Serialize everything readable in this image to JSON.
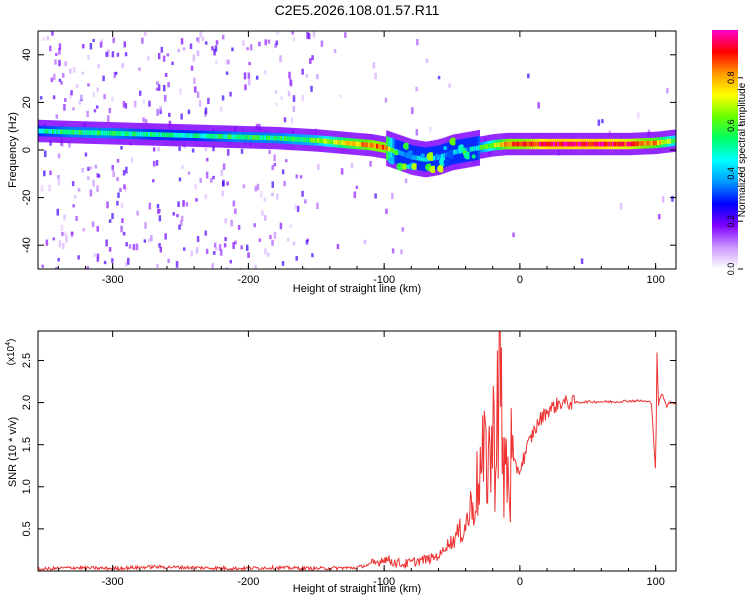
{
  "figure": {
    "title": "C2E5.2026.108.01.57.R11"
  },
  "colorbar": {
    "label": "Normalized spectral amplitude",
    "ticks": [
      "0.0",
      "0.2",
      "0.4",
      "0.6",
      "0.8"
    ],
    "colors": [
      "#ffffff",
      "#cc99ff",
      "#7f00ff",
      "#0000ff",
      "#0099ff",
      "#00ffff",
      "#00ff66",
      "#66ff00",
      "#ffff00",
      "#ff9900",
      "#ff0000",
      "#ff00cc"
    ]
  },
  "chart_data": [
    {
      "type": "heatmap",
      "xlabel": "Height of straight line (km)",
      "ylabel": "Frequency (Hz)",
      "xlim": [
        -355,
        115
      ],
      "ylim": [
        -50,
        50
      ],
      "x_ticks": [
        -300,
        -200,
        -100,
        0,
        100
      ],
      "x_tick_labels": [
        "-300",
        "-200",
        "-100",
        "0",
        "100"
      ],
      "y_ticks": [
        -40,
        -20,
        0,
        20,
        40
      ],
      "y_tick_labels": [
        "-40",
        "-20",
        "0",
        "20",
        "40"
      ],
      "ridge": {
        "x": [
          -355,
          -330,
          -300,
          -270,
          -240,
          -210,
          -180,
          -150,
          -130,
          -110,
          -100,
          -90,
          -80,
          -70,
          -60,
          -50,
          -40,
          -30,
          -20,
          -10,
          0,
          20,
          40,
          60,
          80,
          100,
          115
        ],
        "freq": [
          8,
          7.5,
          7,
          6.5,
          6,
          5.5,
          5,
          4,
          3,
          2,
          1,
          -1,
          -3,
          -4,
          -3,
          -1,
          0,
          1,
          2,
          2.5,
          2.5,
          2.5,
          2.5,
          2.5,
          2.5,
          3,
          4
        ],
        "amplitude": [
          0.5,
          0.55,
          0.55,
          0.5,
          0.5,
          0.55,
          0.55,
          0.6,
          0.75,
          0.85,
          0.85,
          0.4,
          0.4,
          0.45,
          0.4,
          0.4,
          0.35,
          0.55,
          0.7,
          0.85,
          0.85,
          0.95,
          0.95,
          0.95,
          0.9,
          0.8,
          0.6
        ]
      }
    },
    {
      "type": "line",
      "xlabel": "Height of straight line (km)",
      "ylabel": "SNR (10 * v/v)",
      "y_multiplier": "(x10",
      "y_multiplier_exp": "4",
      "y_multiplier_close": ")",
      "xlim": [
        -355,
        115
      ],
      "ylim": [
        0,
        2.85
      ],
      "x_ticks": [
        -300,
        -200,
        -100,
        0,
        100
      ],
      "x_tick_labels": [
        "-300",
        "-200",
        "-100",
        "0",
        "100"
      ],
      "y_ticks": [
        0.5,
        1.0,
        1.5,
        2.0,
        2.5
      ],
      "y_tick_labels": [
        "0.5",
        "1.0",
        "1.5",
        "2.0",
        "2.5"
      ],
      "series": [
        {
          "color": "#ee3333",
          "x": [
            -355,
            -330,
            -300,
            -270,
            -240,
            -210,
            -180,
            -150,
            -120,
            -105,
            -100,
            -92,
            -85,
            -75,
            -65,
            -58,
            -55,
            -50,
            -45,
            -40,
            -35,
            -30,
            -25,
            -20,
            -17,
            -15,
            -13,
            -10,
            -5,
            0,
            5,
            10,
            15,
            20,
            25,
            30,
            35,
            40,
            50,
            60,
            70,
            80,
            90,
            97,
            100,
            101,
            102,
            103,
            105,
            108,
            110,
            115
          ],
          "y": [
            0.02,
            0.04,
            0.03,
            0.05,
            0.04,
            0.03,
            0.04,
            0.03,
            0.04,
            0.1,
            0.15,
            0.1,
            0.08,
            0.12,
            0.15,
            0.2,
            0.3,
            0.35,
            0.45,
            0.55,
            0.8,
            1.1,
            1.35,
            1.45,
            1.9,
            2.85,
            1.2,
            1.2,
            1.25,
            1.2,
            1.45,
            1.65,
            1.8,
            1.9,
            1.95,
            2.0,
            2.0,
            2.0,
            2.01,
            2.01,
            2.01,
            2.02,
            2.02,
            2.0,
            1.15,
            2.6,
            1.95,
            2.05,
            2.1,
            1.95,
            2.0,
            2.0
          ]
        }
      ]
    }
  ]
}
